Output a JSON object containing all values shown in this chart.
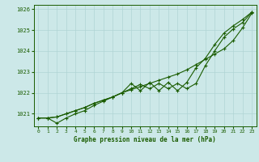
{
  "title": "Graphe pression niveau de la mer (hPa)",
  "background_color": "#cce8e8",
  "grid_color": "#b0d4d4",
  "line_color": "#1a5c00",
  "text_color": "#1a5c00",
  "xlim": [
    -0.5,
    23.5
  ],
  "ylim": [
    1020.4,
    1026.2
  ],
  "yticks": [
    1021,
    1022,
    1023,
    1024,
    1025,
    1026
  ],
  "xticks": [
    0,
    1,
    2,
    3,
    4,
    5,
    6,
    7,
    8,
    9,
    10,
    11,
    12,
    13,
    14,
    15,
    16,
    17,
    18,
    19,
    20,
    21,
    22,
    23
  ],
  "series1": [
    1020.8,
    1020.8,
    1020.85,
    1021.0,
    1021.15,
    1021.3,
    1021.5,
    1021.65,
    1021.8,
    1022.0,
    1022.15,
    1022.3,
    1022.45,
    1022.6,
    1022.75,
    1022.9,
    1023.1,
    1023.35,
    1023.6,
    1023.85,
    1024.1,
    1024.5,
    1025.1,
    1025.8
  ],
  "series2": [
    1020.8,
    1020.8,
    1020.85,
    1021.0,
    1021.15,
    1021.3,
    1021.5,
    1021.65,
    1021.8,
    1022.0,
    1022.45,
    1022.1,
    1022.5,
    1022.1,
    1022.5,
    1022.1,
    1022.5,
    1023.2,
    1023.65,
    1024.3,
    1024.85,
    1025.2,
    1025.5,
    1025.85
  ],
  "series3": [
    1020.8,
    1020.8,
    1020.55,
    1020.8,
    1021.0,
    1021.15,
    1021.4,
    1021.6,
    1021.8,
    1022.0,
    1022.2,
    1022.4,
    1022.2,
    1022.45,
    1022.2,
    1022.45,
    1022.2,
    1022.45,
    1023.3,
    1024.0,
    1024.65,
    1025.05,
    1025.35,
    1025.85
  ]
}
